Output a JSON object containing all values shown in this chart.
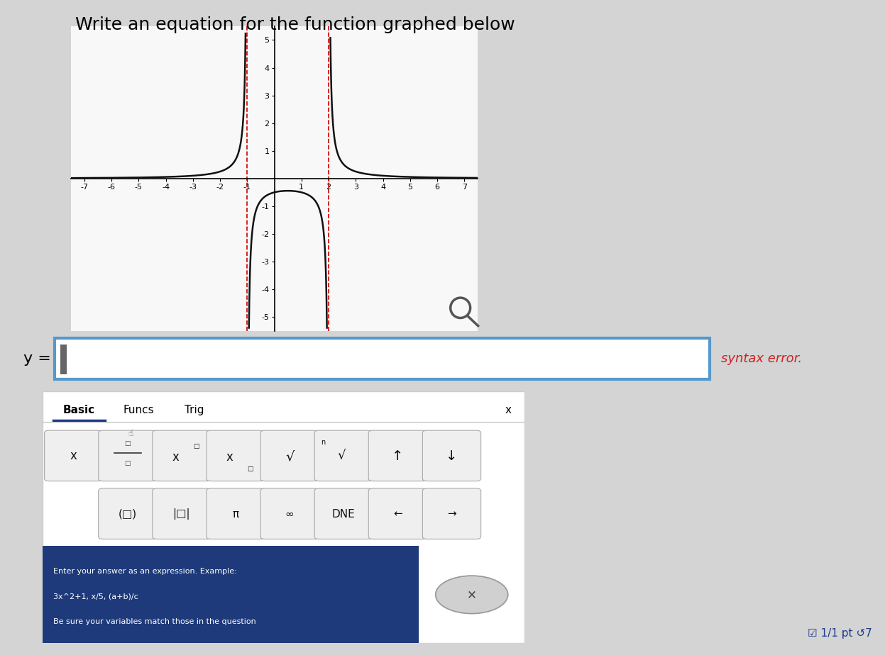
{
  "title": "Write an equation for the function graphed below",
  "title_fontsize": 18,
  "background_color": "#d8d8d8",
  "graph_bg": "#ffffff",
  "xlim": [
    -7.5,
    7.5
  ],
  "ylim": [
    -5.5,
    5.5
  ],
  "xticks": [
    -7,
    -6,
    -5,
    -4,
    -3,
    -2,
    -1,
    1,
    2,
    3,
    4,
    5,
    6,
    7
  ],
  "yticks": [
    -5,
    -4,
    -3,
    -2,
    -1,
    1,
    2,
    3,
    4,
    5
  ],
  "asymptote_x1": -1,
  "asymptote_x2": 2,
  "asymptote_color": "#cc0000",
  "curve_color": "#111111",
  "curve_linewidth": 1.8,
  "input_box_border_color": "#5599cc",
  "input_box_bg": "#ffffff",
  "syntax_error_text": "syntax error.",
  "syntax_error_color": "#cc2222",
  "tab_underline_color": "#1a3a8a",
  "bottom_bar_bg": "#1e3a7a",
  "button_bg": "#eeeeee",
  "button_border": "#aaaaaa",
  "score_color": "#1a3a8a",
  "cursor_color": "#666666",
  "kb_bg": "#ffffff",
  "page_bg": "#d4d4d4"
}
